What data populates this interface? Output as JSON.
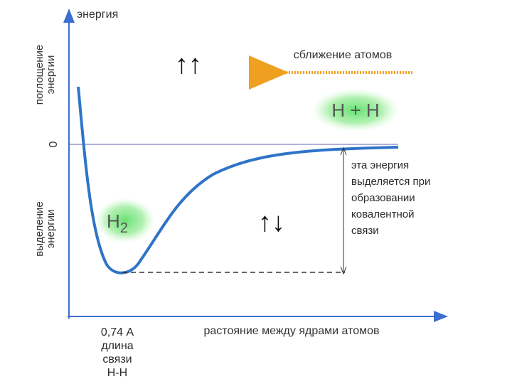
{
  "axes": {
    "y_label": "энергия",
    "absorption": [
      "поглощение",
      "энергии"
    ],
    "zero": "0",
    "release": [
      "выделение",
      "энергии"
    ],
    "x_label": "растояние между ядрами атомов"
  },
  "annotations": {
    "parallel_spins": "↑↑",
    "approach": "сближение атомов",
    "atoms": "H + H",
    "molecule": {
      "symbol": "H",
      "subscript": "2"
    },
    "antiparallel_spins": "↑↓",
    "energy_note": [
      "эта энергия",
      "выделяется при",
      "образовании",
      "ковалентной",
      "связи"
    ],
    "bond_length": [
      "0,74 А",
      "длина",
      "связи",
      "Н-Н"
    ]
  }
}
